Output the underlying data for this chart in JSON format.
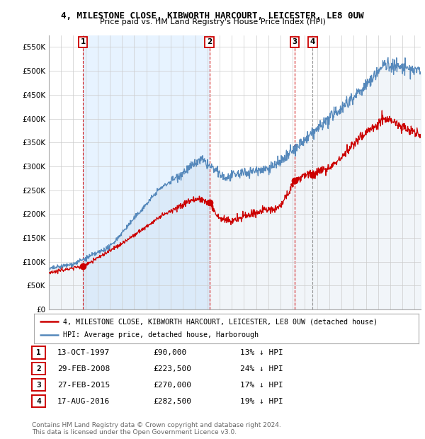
{
  "title": "4, MILESTONE CLOSE, KIBWORTH HARCOURT, LEICESTER, LE8 0UW",
  "subtitle": "Price paid vs. HM Land Registry's House Price Index (HPI)",
  "ylim": [
    0,
    575000
  ],
  "yticks": [
    0,
    50000,
    100000,
    150000,
    200000,
    250000,
    300000,
    350000,
    400000,
    450000,
    500000,
    550000
  ],
  "ytick_labels": [
    "£0",
    "£50K",
    "£100K",
    "£150K",
    "£200K",
    "£250K",
    "£300K",
    "£350K",
    "£400K",
    "£450K",
    "£500K",
    "£550K"
  ],
  "xlim_start": 1995.0,
  "xlim_end": 2025.5,
  "sale_dates": [
    1997.79,
    2008.16,
    2015.16,
    2016.64
  ],
  "sale_prices": [
    90000,
    223500,
    270000,
    282500
  ],
  "sale_labels": [
    "1",
    "2",
    "3",
    "4"
  ],
  "vline_colors": [
    "#cc0000",
    "#cc0000",
    "#cc0000",
    "#888888"
  ],
  "vline_styles": [
    "--",
    "--",
    "--",
    "--"
  ],
  "sale_line_color": "#cc0000",
  "hpi_line_color": "#5588bb",
  "hpi_fill_color": "#ddeeff",
  "legend_sale_label": "4, MILESTONE CLOSE, KIBWORTH HARCOURT, LEICESTER, LE8 0UW (detached house)",
  "legend_hpi_label": "HPI: Average price, detached house, Harborough",
  "table_rows": [
    [
      "1",
      "13-OCT-1997",
      "£90,000",
      "13% ↓ HPI"
    ],
    [
      "2",
      "29-FEB-2008",
      "£223,500",
      "24% ↓ HPI"
    ],
    [
      "3",
      "27-FEB-2015",
      "£270,000",
      "17% ↓ HPI"
    ],
    [
      "4",
      "17-AUG-2016",
      "£282,500",
      "19% ↓ HPI"
    ]
  ],
  "footer": "Contains HM Land Registry data © Crown copyright and database right 2024.\nThis data is licensed under the Open Government Licence v3.0.",
  "background_color": "#ffffff",
  "grid_color": "#cccccc"
}
